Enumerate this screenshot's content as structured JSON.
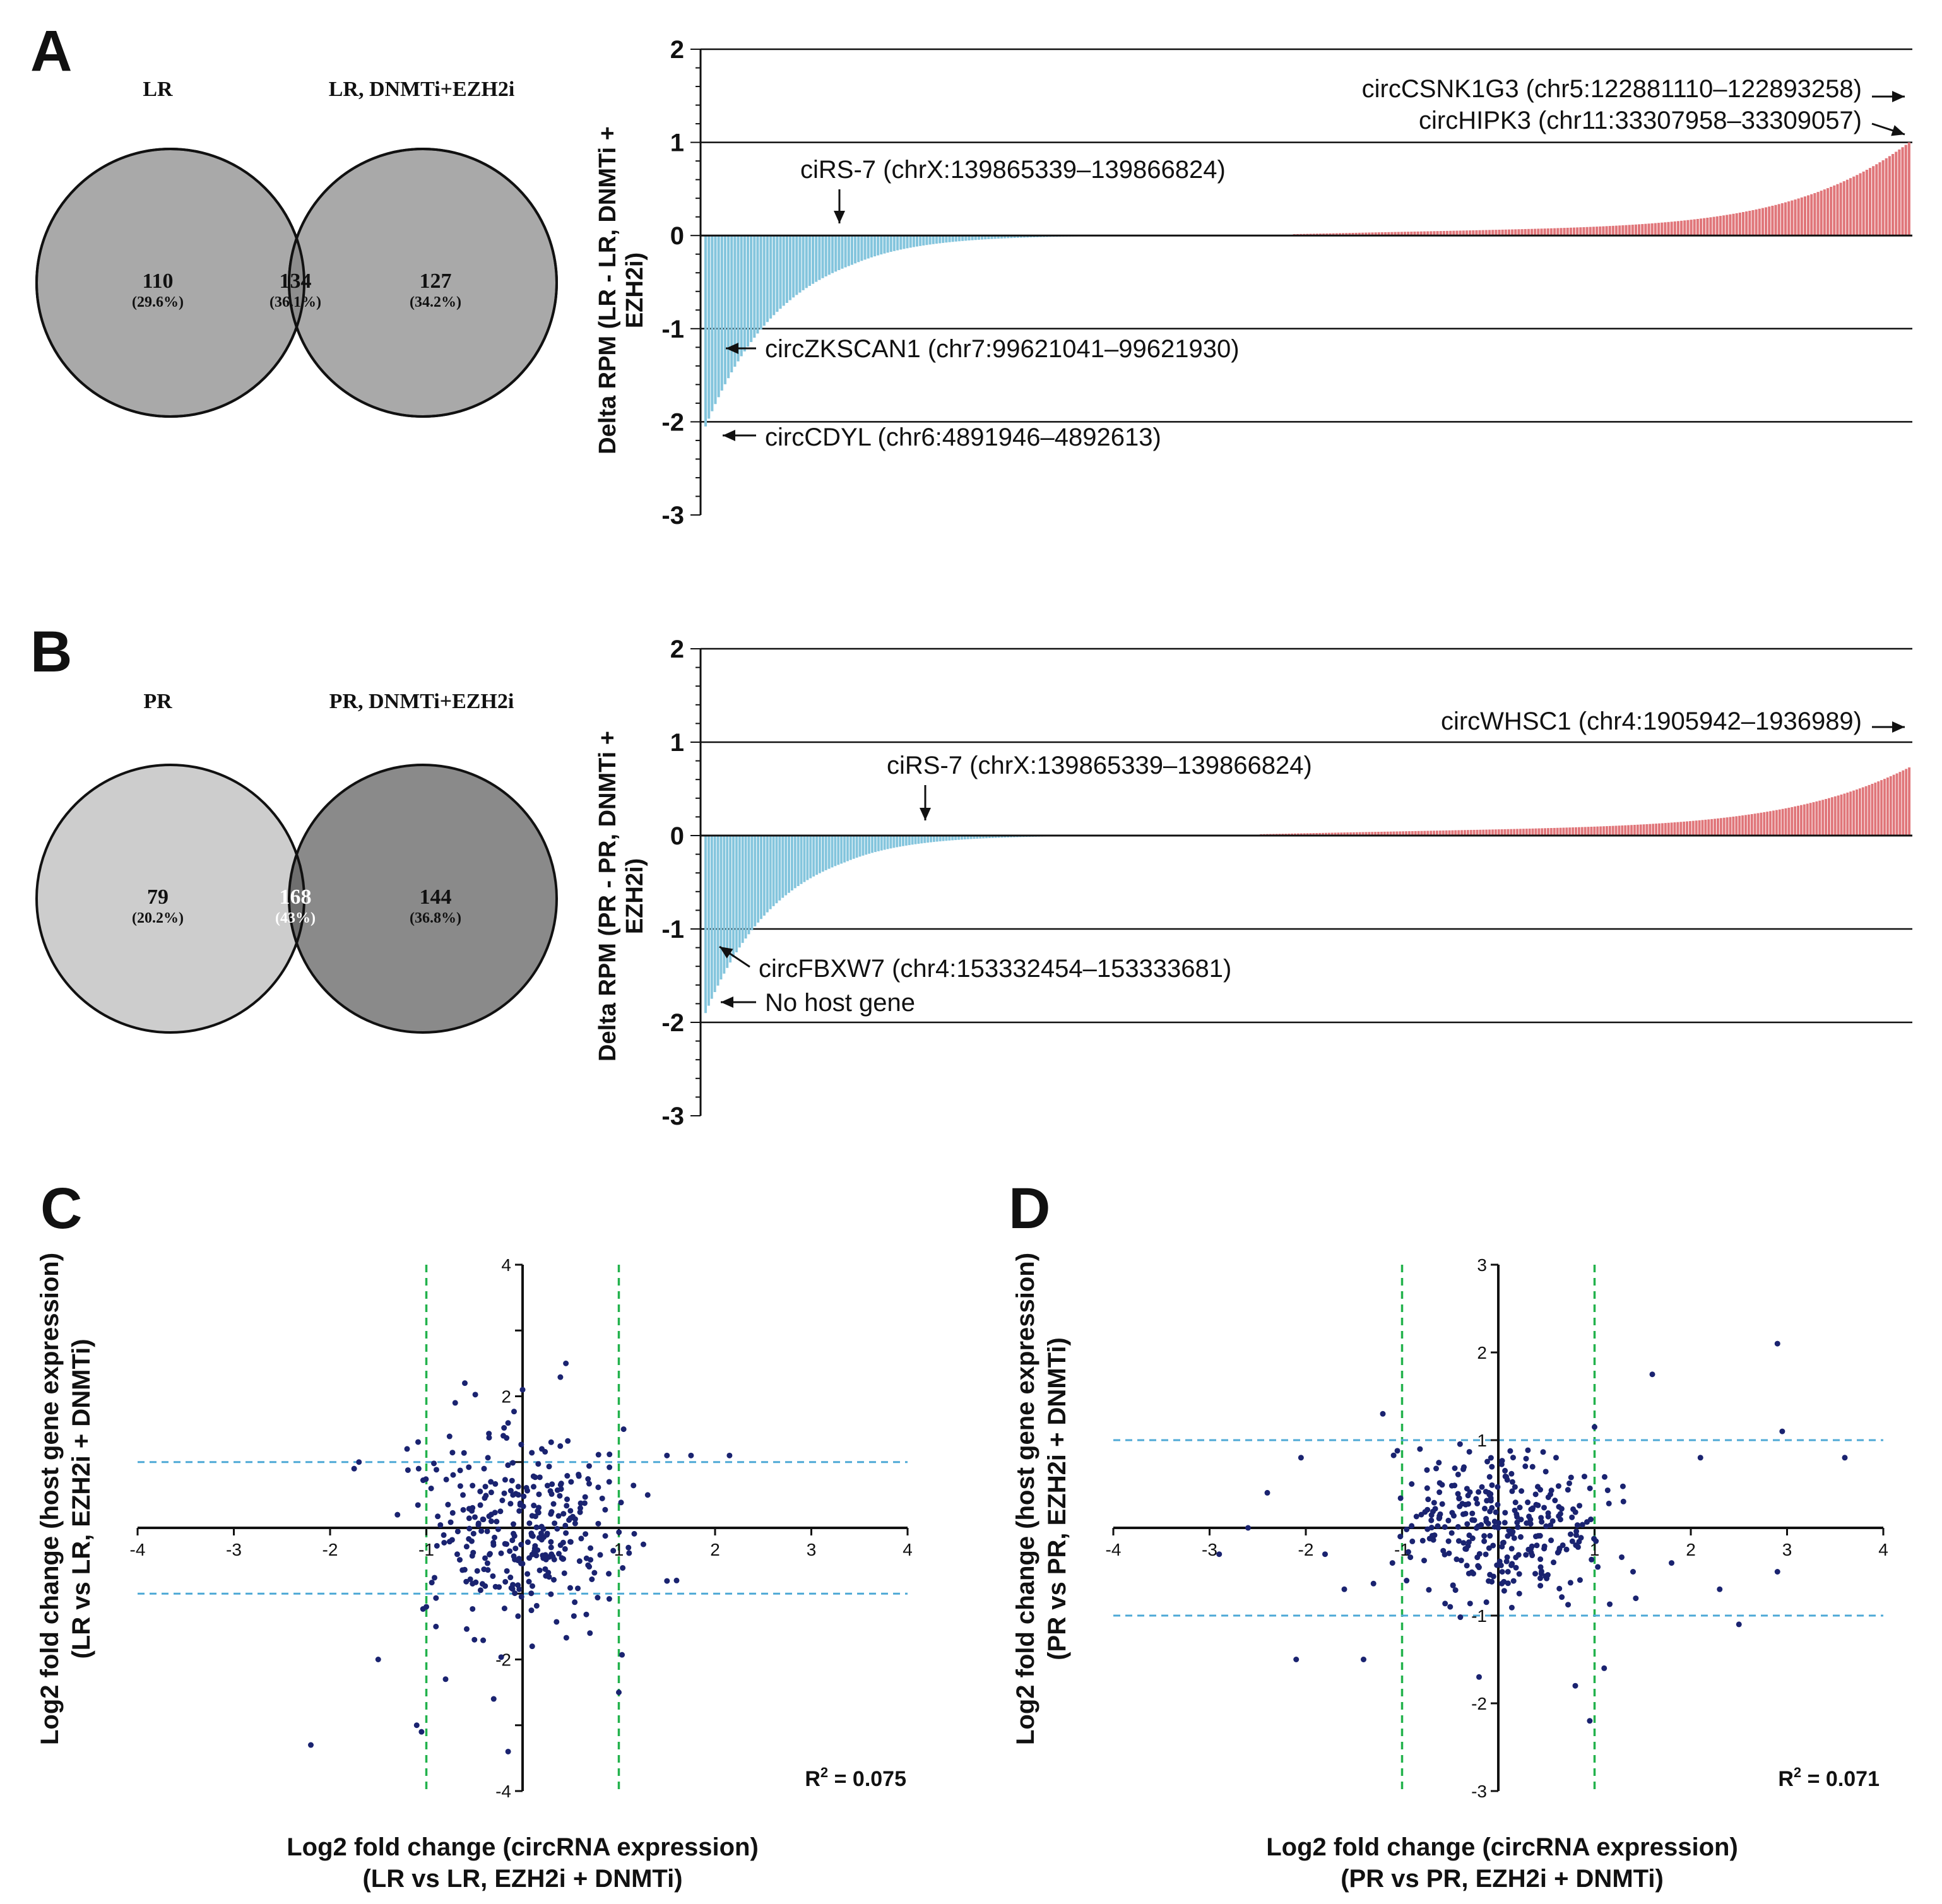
{
  "colors": {
    "pos_bar": "#e0767a",
    "neg_bar": "#84c5dd",
    "green_dash": "#22b24c",
    "blue_dash": "#4ea9d6",
    "point": "#1a2370"
  },
  "panelA": {
    "letter": "A",
    "venn": {
      "left_title": "LR",
      "right_title": "LR, DNMTi+EZH2i",
      "left_only": "110",
      "left_only_pct": "(29.6%)",
      "overlap": "134",
      "overlap_pct": "(36.1%)",
      "right_only": "127",
      "right_only_pct": "(34.2%)"
    },
    "ylabel_line1": "Delta RPM (LR - LR, DNMTi +",
    "ylabel_line2": "EZH2i)",
    "annotations": [
      "circCSNK1G3 (chr5:122881110–122893258)",
      "circHIPK3 (chr11:33307958–33309057)",
      "ciRS-7 (chrX:139865339–139866824)",
      "circZKSCAN1 (chr7:99621041–99621930)",
      "circCDYL (chr6:4891946–4892613)"
    ]
  },
  "panelB": {
    "letter": "B",
    "venn": {
      "left_title": "PR",
      "right_title": "PR, DNMTi+EZH2i",
      "left_only": "79",
      "left_only_pct": "(20.2%)",
      "overlap": "168",
      "overlap_pct": "(43%)",
      "right_only": "144",
      "right_only_pct": "(36.8%)"
    },
    "ylabel_line1": "Delta RPM (PR - PR, DNMTi +",
    "ylabel_line2": "EZH2i)",
    "annotations": [
      "circWHSC1 (chr4:1905942–1936989)",
      "ciRS-7 (chrX:139865339–139866824)",
      "circFBXW7 (chr4:153332454–153333681)",
      "No host gene"
    ]
  },
  "panelC": {
    "letter": "C",
    "ylabel_line1": "Log2 fold change (host gene expression)",
    "ylabel_line2": "(LR vs LR, EZH2i + DNMTi)",
    "xlabel_line1": "Log2 fold change (circRNA expression)",
    "xlabel_line2": "(LR vs LR, EZH2i + DNMTi)",
    "r2_prefix": "R",
    "r2_sup": "2",
    "r2_value": " = 0.075"
  },
  "panelD": {
    "letter": "D",
    "ylabel_line1": "Log2 fold change (host gene expression)",
    "ylabel_line2": "(PR vs PR, EZH2i + DNMTi)",
    "xlabel_line1": "Log2 fold change (circRNA expression)",
    "xlabel_line2": "(PR vs PR, EZH2i + DNMTi)",
    "r2_prefix": "R",
    "r2_sup": "2",
    "r2_value": " = 0.071"
  },
  "chart_data": [
    {
      "type": "bar",
      "id": "A-bars",
      "title": "",
      "xlabel": "",
      "ylabel": "Delta RPM (LR - LR, DNMTi + EZH2i)",
      "ylim": [
        -3,
        2
      ],
      "yticks": [
        "2",
        "1",
        "0",
        "-1",
        "-2",
        "-3"
      ],
      "reference_lines": [
        1,
        -1,
        -2
      ],
      "n_bars": 371,
      "sorted": "ascending",
      "description": "Sorted delta RPM per circRNA; minimum about -2.05 (circCDYL), maximum about 1.0",
      "min": -2.05,
      "max": 1.0,
      "n_negative": 181
    },
    {
      "type": "bar",
      "id": "B-bars",
      "title": "",
      "xlabel": "",
      "ylabel": "Delta RPM (PR - PR, DNMTi + EZH2i)",
      "ylim": [
        -3,
        2
      ],
      "yticks": [
        "2",
        "1",
        "0",
        "-1",
        "-2",
        "-3"
      ],
      "reference_lines": [
        1,
        -1,
        -2
      ],
      "n_bars": 391,
      "sorted": "ascending",
      "description": "Sorted delta RPM per circRNA; minimum about -1.9 (no host gene), maximum about 0.73",
      "min": -1.9,
      "max": 0.73,
      "n_negative": 180
    },
    {
      "type": "scatter",
      "id": "C-scatter",
      "xlabel": "Log2 fold change (circRNA expression) (LR vs LR, EZH2i + DNMTi)",
      "ylabel": "Log2 fold change (host gene expression) (LR vs LR, EZH2i + DNMTi)",
      "xlim": [
        -4,
        4
      ],
      "ylim": [
        -4,
        4
      ],
      "xticks": [
        "-4",
        "-3",
        "-2",
        "-1",
        "1",
        "2",
        "3",
        "4"
      ],
      "yticks": [
        "4",
        "2",
        "-2",
        "-4"
      ],
      "dashed_vertical": [
        -1,
        1
      ],
      "dashed_horizontal": [
        1,
        -1
      ],
      "r2": 0.075,
      "points": [
        [
          -2.2,
          -3.3
        ],
        [
          -1.7,
          1.0
        ],
        [
          -1.75,
          0.9
        ],
        [
          -1.5,
          -2.0
        ],
        [
          -1.3,
          0.2
        ],
        [
          -1.2,
          1.2
        ],
        [
          -1.1,
          -3.0
        ],
        [
          -1.05,
          -3.1
        ],
        [
          -1.0,
          -1.2
        ],
        [
          -0.95,
          0.6
        ],
        [
          -0.9,
          -1.5
        ],
        [
          -0.8,
          -2.3
        ],
        [
          -0.7,
          1.9
        ],
        [
          -0.6,
          2.2
        ],
        [
          -0.5,
          -1.7
        ],
        [
          -0.4,
          0.9
        ],
        [
          -0.3,
          -2.6
        ],
        [
          -0.2,
          1.4
        ],
        [
          -0.15,
          -3.4
        ],
        [
          -0.1,
          0.5
        ],
        [
          0.0,
          2.1
        ],
        [
          0.05,
          -0.7
        ],
        [
          0.1,
          -1.8
        ],
        [
          0.2,
          1.2
        ],
        [
          0.3,
          -0.4
        ],
        [
          0.45,
          2.5
        ],
        [
          0.6,
          0.3
        ],
        [
          0.7,
          -1.6
        ],
        [
          0.9,
          0.7
        ],
        [
          1.0,
          -2.5
        ],
        [
          1.05,
          1.5
        ],
        [
          1.1,
          -0.3
        ],
        [
          1.3,
          0.5
        ],
        [
          1.5,
          1.1
        ],
        [
          1.6,
          -0.8
        ],
        [
          1.75,
          1.1
        ],
        [
          2.15,
          1.1
        ]
      ]
    },
    {
      "type": "scatter",
      "id": "D-scatter",
      "xlabel": "Log2 fold change (circRNA expression) (PR vs PR, EZH2i + DNMTi)",
      "ylabel": "Log2 fold change (host gene expression) (PR vs PR, EZH2i + DNMTi)",
      "xlim": [
        -4,
        4
      ],
      "ylim": [
        -3,
        3
      ],
      "xticks": [
        "-4",
        "-3",
        "-2",
        "-1",
        "1",
        "2",
        "3",
        "4"
      ],
      "yticks": [
        "3",
        "2",
        "1",
        "-1",
        "-2",
        "-3"
      ],
      "dashed_vertical": [
        -1,
        1
      ],
      "dashed_horizontal": [
        1,
        -1
      ],
      "r2": 0.071,
      "points": [
        [
          -2.9,
          -0.3
        ],
        [
          -2.6,
          0.0
        ],
        [
          -2.4,
          0.4
        ],
        [
          -2.1,
          -1.5
        ],
        [
          -2.05,
          0.8
        ],
        [
          -1.8,
          -0.3
        ],
        [
          -1.6,
          -0.7
        ],
        [
          -1.4,
          -1.5
        ],
        [
          -1.2,
          1.3
        ],
        [
          -1.1,
          -0.4
        ],
        [
          -0.9,
          0.5
        ],
        [
          -0.5,
          -0.9
        ],
        [
          -0.2,
          -1.7
        ],
        [
          -0.1,
          0.4
        ],
        [
          0.0,
          0.0
        ],
        [
          0.1,
          -0.5
        ],
        [
          0.4,
          -0.2
        ],
        [
          0.6,
          0.8
        ],
        [
          0.8,
          -1.8
        ],
        [
          0.95,
          -2.2
        ],
        [
          1.0,
          1.15
        ],
        [
          1.1,
          -1.6
        ],
        [
          1.3,
          0.3
        ],
        [
          1.4,
          -0.5
        ],
        [
          1.6,
          1.75
        ],
        [
          1.8,
          -0.4
        ],
        [
          2.1,
          0.8
        ],
        [
          2.3,
          -0.7
        ],
        [
          2.5,
          -1.1
        ],
        [
          2.9,
          2.1
        ],
        [
          2.9,
          -0.5
        ],
        [
          2.95,
          1.1
        ],
        [
          3.6,
          0.8
        ]
      ]
    }
  ]
}
